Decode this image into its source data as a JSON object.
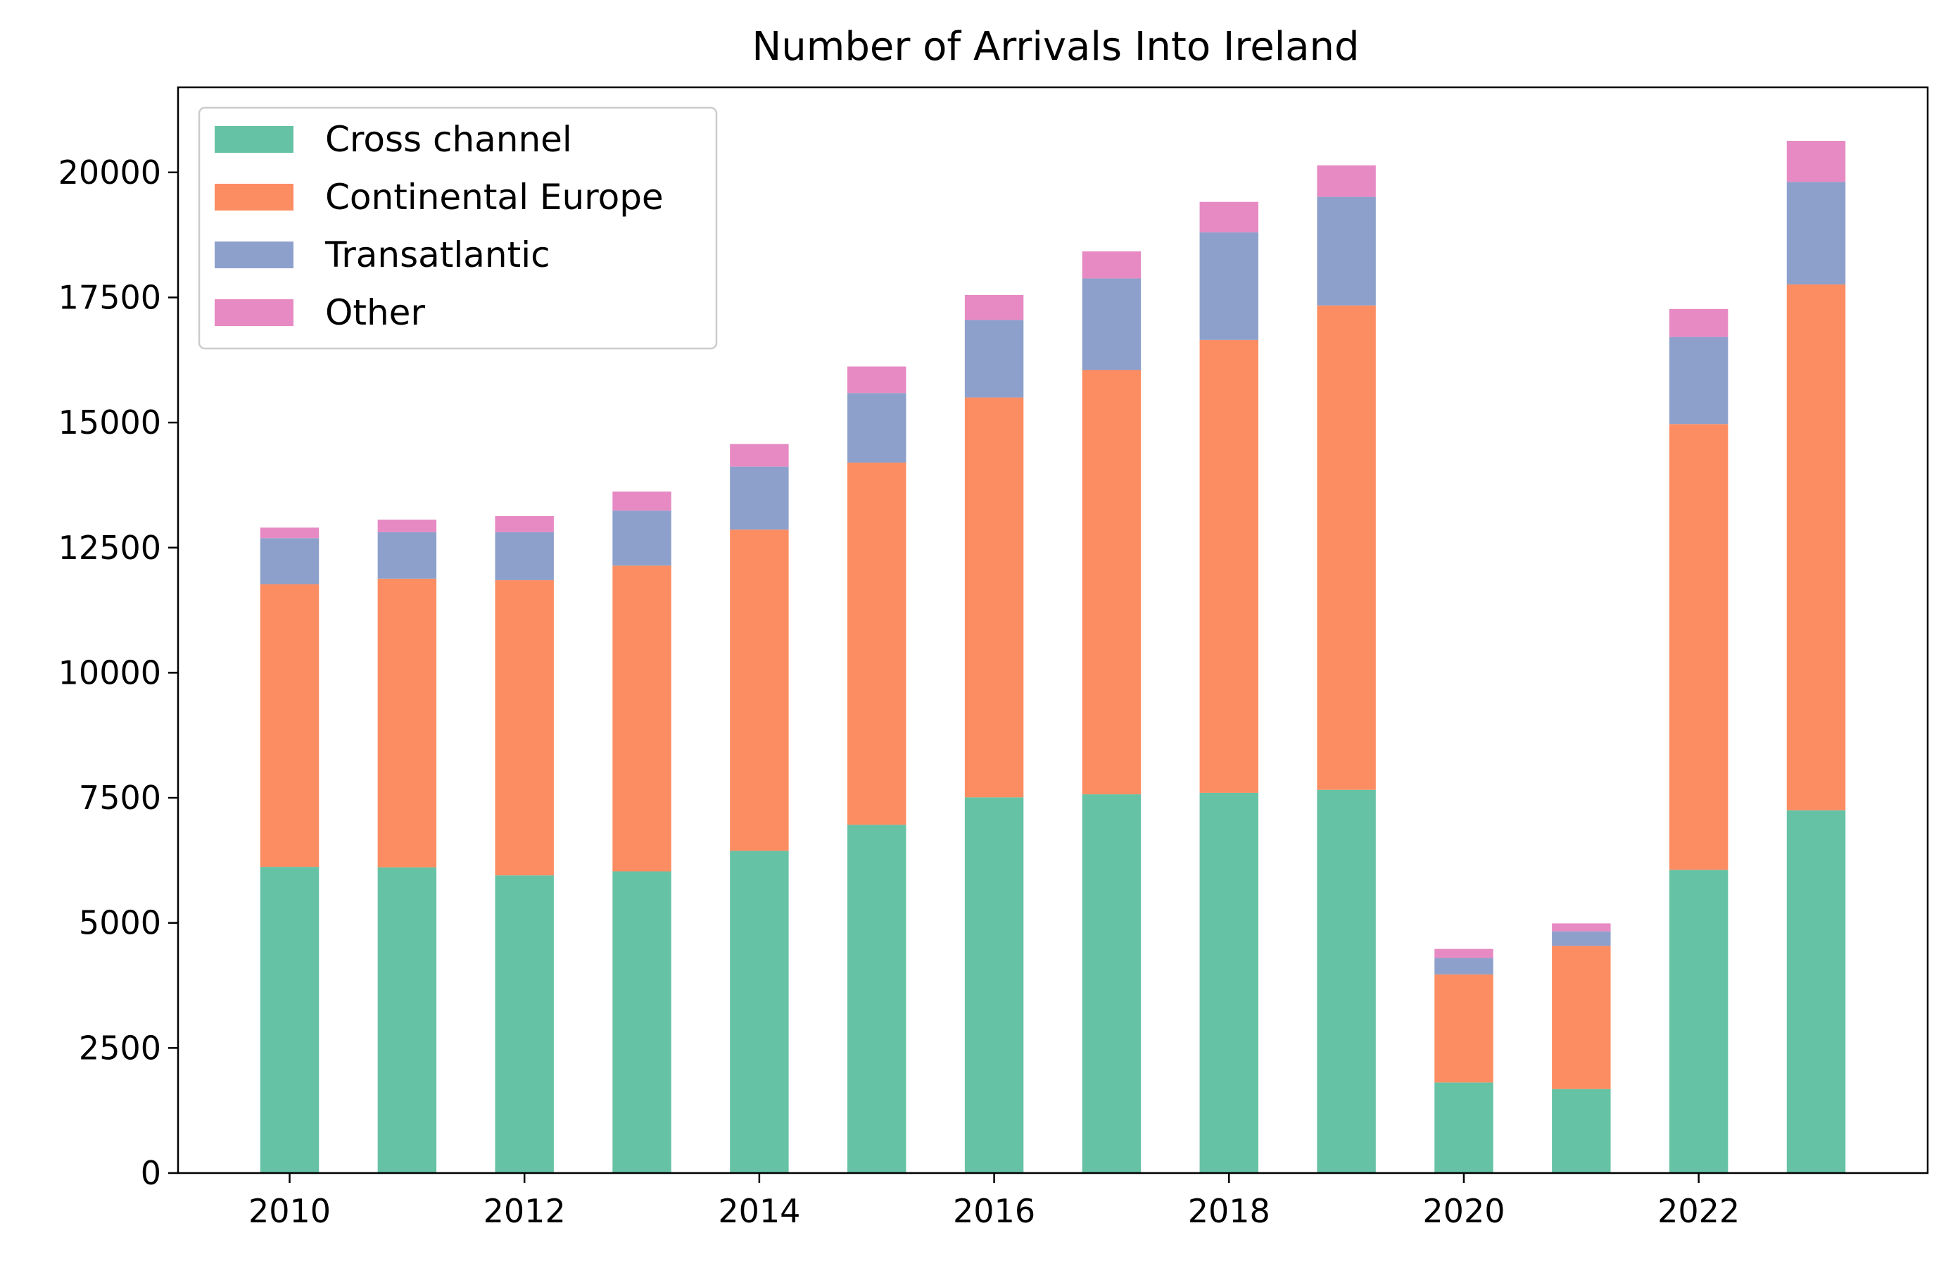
{
  "chart_data": {
    "type": "bar",
    "stacked": true,
    "title": "Number of Arrivals Into Ireland",
    "xlabel": "",
    "ylabel": "",
    "x": [
      2010,
      2011,
      2012,
      2013,
      2014,
      2015,
      2016,
      2017,
      2018,
      2019,
      2020,
      2021,
      2022,
      2023
    ],
    "xticks": [
      2010,
      2012,
      2014,
      2016,
      2018,
      2020,
      2022
    ],
    "xlim": [
      2009.05,
      2023.95
    ],
    "ylim": [
      0,
      21700
    ],
    "yticks": [
      0,
      2500,
      5000,
      7500,
      10000,
      12500,
      15000,
      17500,
      20000
    ],
    "grid": false,
    "legend": "top-left",
    "series": [
      {
        "name": "Cross channel",
        "color": "#66c2a5",
        "values": [
          6120,
          6110,
          5950,
          6030,
          6440,
          6960,
          7510,
          7570,
          7600,
          7660,
          1810,
          1680,
          6060,
          7250
        ]
      },
      {
        "name": "Continental Europe",
        "color": "#fc8d62",
        "values": [
          5650,
          5770,
          5900,
          6110,
          6420,
          7240,
          7990,
          8480,
          9050,
          9680,
          2160,
          2860,
          8910,
          10510
        ]
      },
      {
        "name": "Transatlantic",
        "color": "#8da0cb",
        "values": [
          920,
          930,
          960,
          1100,
          1260,
          1390,
          1550,
          1830,
          2150,
          2170,
          330,
          290,
          1740,
          2050
        ]
      },
      {
        "name": "Other",
        "color": "#e78ac3",
        "values": [
          210,
          250,
          320,
          380,
          450,
          530,
          500,
          540,
          610,
          630,
          180,
          160,
          560,
          820
        ]
      }
    ]
  }
}
